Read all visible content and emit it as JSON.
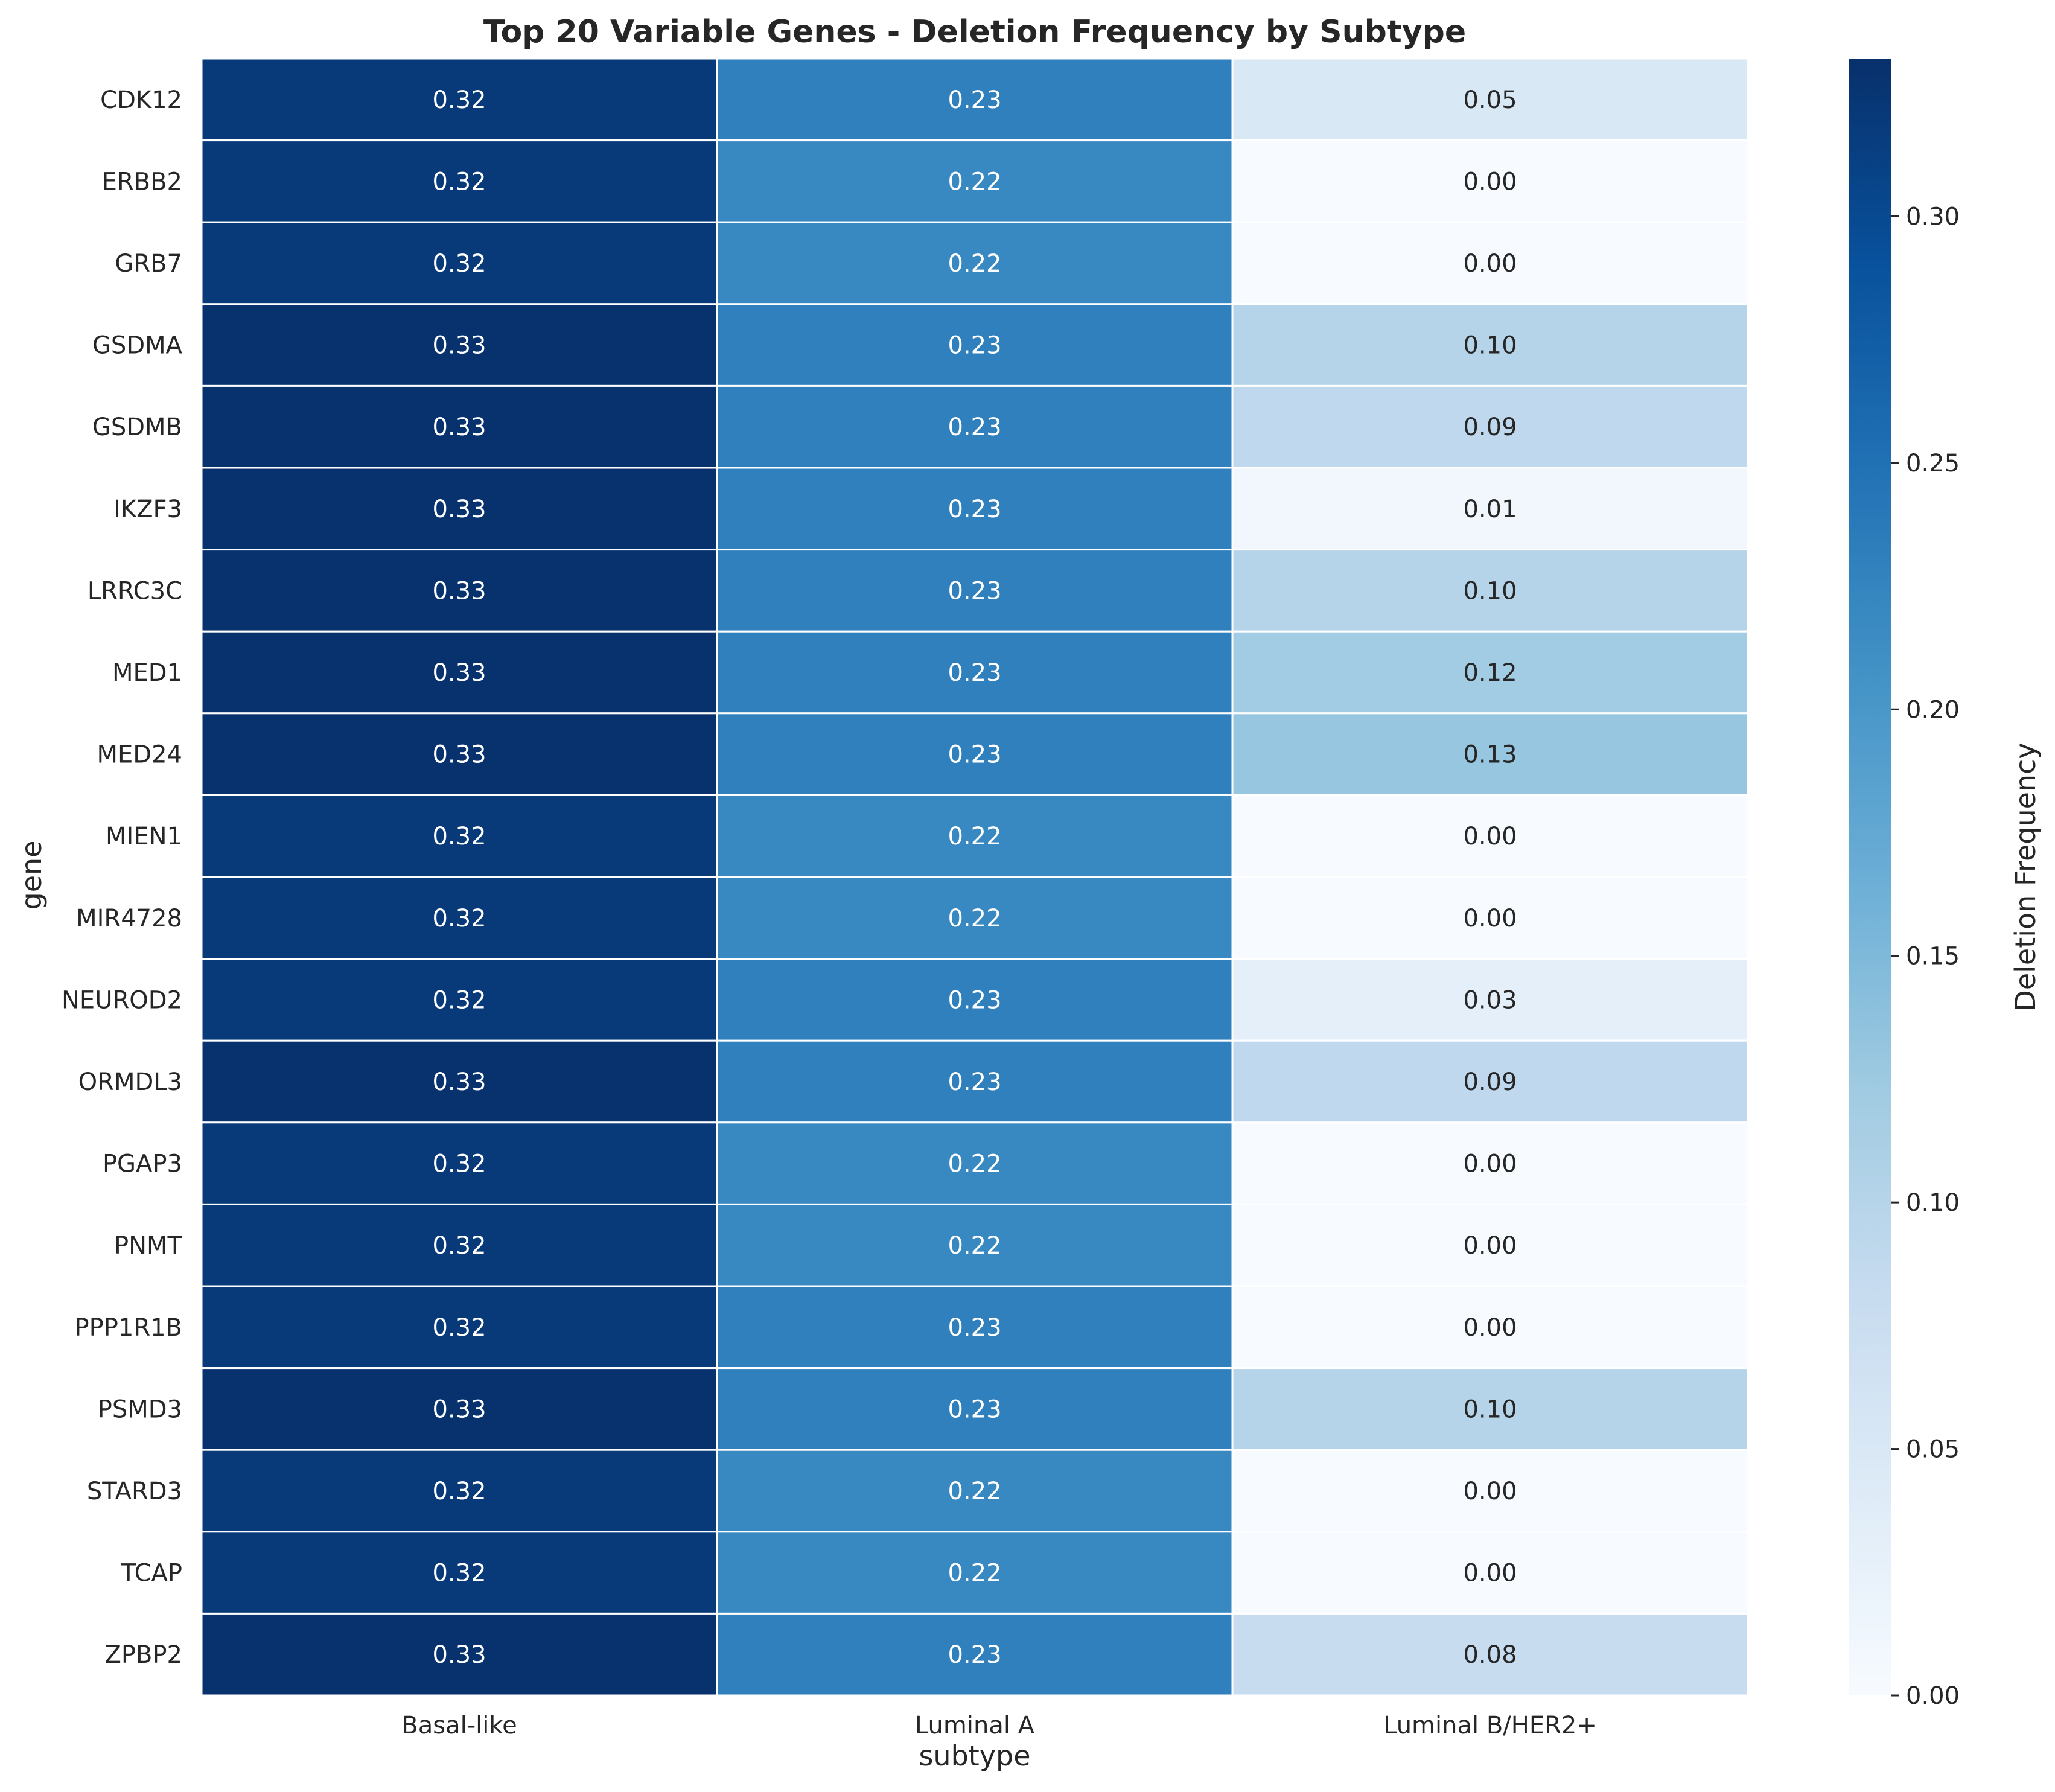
{
  "chart_data": {
    "type": "heatmap",
    "title": "Top 20 Variable Genes - Deletion Frequency by Subtype",
    "xlabel": "subtype",
    "ylabel": "gene",
    "x_categories": [
      "Basal-like",
      "Luminal A",
      "Luminal B/HER2+"
    ],
    "y_categories": [
      "CDK12",
      "ERBB2",
      "GRB7",
      "GSDMA",
      "GSDMB",
      "IKZF3",
      "LRRC3C",
      "MED1",
      "MED24",
      "MIEN1",
      "MIR4728",
      "NEUROD2",
      "ORMDL3",
      "PGAP3",
      "PNMT",
      "PPP1R1B",
      "PSMD3",
      "STARD3",
      "TCAP",
      "ZPBP2"
    ],
    "values": [
      [
        0.32,
        0.23,
        0.05
      ],
      [
        0.32,
        0.22,
        0.0
      ],
      [
        0.32,
        0.22,
        0.0
      ],
      [
        0.33,
        0.23,
        0.1
      ],
      [
        0.33,
        0.23,
        0.09
      ],
      [
        0.33,
        0.23,
        0.01
      ],
      [
        0.33,
        0.23,
        0.1
      ],
      [
        0.33,
        0.23,
        0.12
      ],
      [
        0.33,
        0.23,
        0.13
      ],
      [
        0.32,
        0.22,
        0.0
      ],
      [
        0.32,
        0.22,
        0.0
      ],
      [
        0.32,
        0.23,
        0.03
      ],
      [
        0.33,
        0.23,
        0.09
      ],
      [
        0.32,
        0.22,
        0.0
      ],
      [
        0.32,
        0.22,
        0.0
      ],
      [
        0.32,
        0.23,
        0.0
      ],
      [
        0.33,
        0.23,
        0.1
      ],
      [
        0.32,
        0.22,
        0.0
      ],
      [
        0.32,
        0.22,
        0.0
      ],
      [
        0.33,
        0.23,
        0.08
      ]
    ],
    "value_labels": [
      [
        "0.32",
        "0.23",
        "0.05"
      ],
      [
        "0.32",
        "0.22",
        "0.00"
      ],
      [
        "0.32",
        "0.22",
        "0.00"
      ],
      [
        "0.33",
        "0.23",
        "0.10"
      ],
      [
        "0.33",
        "0.23",
        "0.09"
      ],
      [
        "0.33",
        "0.23",
        "0.01"
      ],
      [
        "0.33",
        "0.23",
        "0.10"
      ],
      [
        "0.33",
        "0.23",
        "0.12"
      ],
      [
        "0.33",
        "0.23",
        "0.13"
      ],
      [
        "0.32",
        "0.22",
        "0.00"
      ],
      [
        "0.32",
        "0.22",
        "0.00"
      ],
      [
        "0.32",
        "0.23",
        "0.03"
      ],
      [
        "0.33",
        "0.23",
        "0.09"
      ],
      [
        "0.32",
        "0.22",
        "0.00"
      ],
      [
        "0.32",
        "0.22",
        "0.00"
      ],
      [
        "0.32",
        "0.23",
        "0.00"
      ],
      [
        "0.33",
        "0.23",
        "0.10"
      ],
      [
        "0.32",
        "0.22",
        "0.00"
      ],
      [
        "0.32",
        "0.22",
        "0.00"
      ],
      [
        "0.33",
        "0.23",
        "0.08"
      ]
    ],
    "colorbar": {
      "label": "Deletion Frequency",
      "range": [
        0,
        0.332
      ],
      "ticks": [
        0.0,
        0.05,
        0.1,
        0.15,
        0.2,
        0.25,
        0.3
      ],
      "tick_labels": [
        "0.00",
        "0.05",
        "0.10",
        "0.15",
        "0.20",
        "0.25",
        "0.30"
      ],
      "colormap": "Blues",
      "colors": [
        "#f7fbff",
        "#deebf7",
        "#c6dbef",
        "#9ecae1",
        "#6baed6",
        "#4292c6",
        "#2171b5",
        "#08519c",
        "#08306b"
      ]
    },
    "grid": false,
    "cell_border_color": "#ffffff"
  }
}
